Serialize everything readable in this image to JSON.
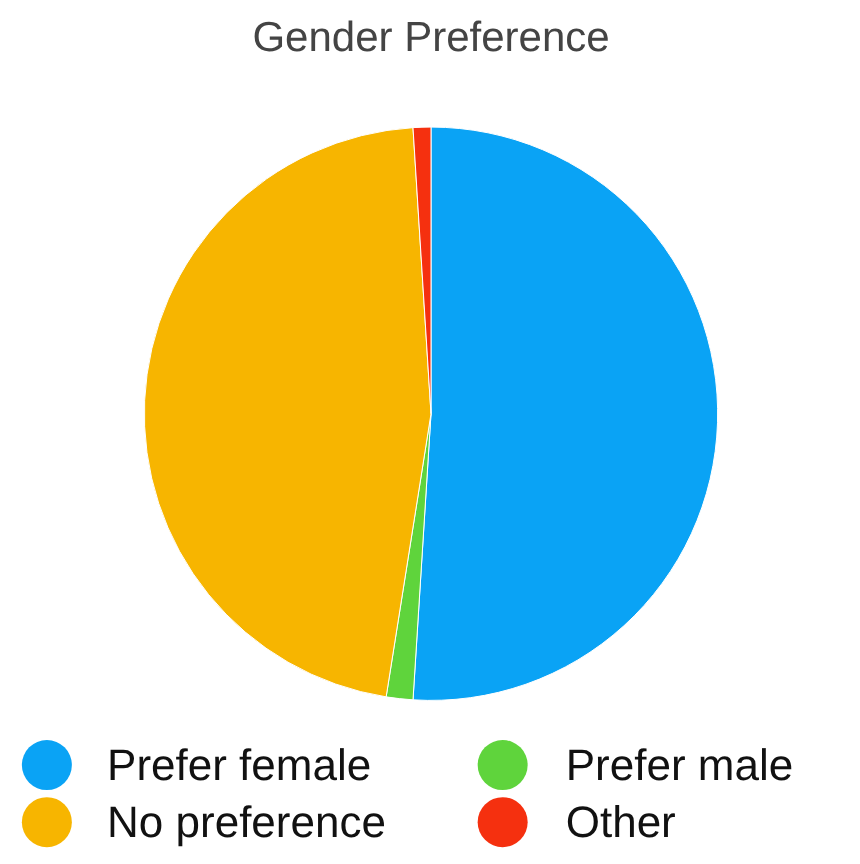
{
  "chart_data": {
    "type": "pie",
    "title": "Gender Preference",
    "categories": [
      "Prefer female",
      "Prefer male",
      "No preference",
      "Other"
    ],
    "values": [
      51,
      1.5,
      46.5,
      1
    ],
    "colors": [
      "#0aa3f5",
      "#5fd43c",
      "#f7b500",
      "#f5300f"
    ],
    "legend": "bottom"
  }
}
